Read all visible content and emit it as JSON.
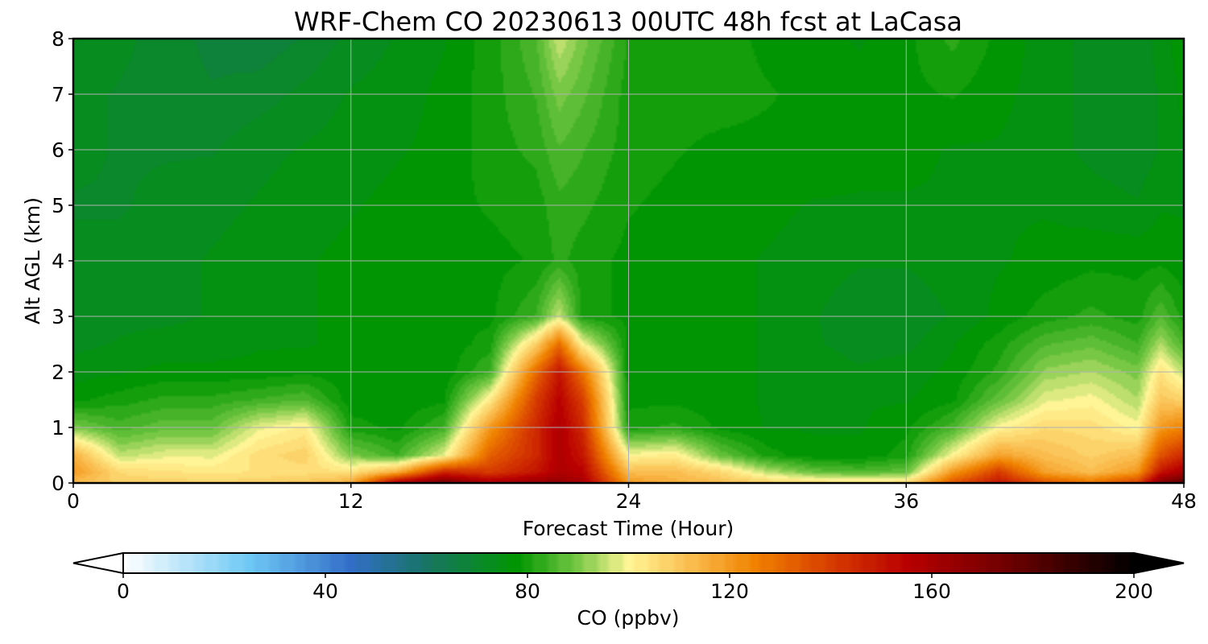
{
  "chart_data": {
    "type": "heatmap",
    "title": "WRF-Chem CO  20230613 00UTC 48h fcst at LaCasa",
    "xlabel": "Forecast Time (Hour)",
    "ylabel": "Alt AGL (km)",
    "xlim": [
      0,
      48
    ],
    "ylim": [
      0,
      8
    ],
    "xticks": [
      0,
      12,
      24,
      36,
      48
    ],
    "xtick_labels": [
      "0",
      "12",
      "24",
      "36",
      "48"
    ],
    "yticks": [
      0,
      1,
      2,
      3,
      4,
      5,
      6,
      7,
      8
    ],
    "ytick_labels": [
      "0",
      "1",
      "2",
      "3",
      "4",
      "5",
      "6",
      "7",
      "8"
    ],
    "grid": true,
    "colorbar": {
      "label": "CO  (ppbv)",
      "range": [
        0,
        200
      ],
      "ticks": [
        0,
        40,
        80,
        120,
        160,
        200
      ],
      "tick_labels": [
        "0",
        "40",
        "80",
        "120",
        "160",
        "200"
      ],
      "extend": "both"
    },
    "time_hours": [
      0,
      2,
      4,
      6,
      8,
      10,
      12,
      14,
      16,
      18,
      20,
      21,
      22,
      24,
      26,
      28,
      30,
      32,
      34,
      36,
      38,
      40,
      42,
      44,
      46,
      47,
      48
    ],
    "altitudes_km": [
      0,
      0.2,
      0.5,
      1,
      1.5,
      2,
      2.5,
      3,
      4,
      5,
      6,
      7,
      8
    ],
    "co_ppbv": [
      [
        112,
        108,
        108,
        107,
        108,
        110,
        116,
        160,
        175,
        160,
        165,
        165,
        160,
        120,
        115,
        112,
        108,
        106,
        105,
        106,
        135,
        150,
        135,
        128,
        140,
        170,
        180
      ],
      [
        120,
        106,
        104,
        103,
        104,
        105,
        104,
        115,
        145,
        140,
        150,
        158,
        155,
        112,
        112,
        106,
        95,
        88,
        86,
        88,
        120,
        140,
        118,
        112,
        120,
        150,
        160
      ],
      [
        115,
        95,
        98,
        98,
        105,
        108,
        90,
        84,
        98,
        132,
        145,
        158,
        150,
        100,
        102,
        88,
        80,
        77,
        77,
        80,
        100,
        118,
        112,
        108,
        112,
        135,
        145
      ],
      [
        90,
        85,
        88,
        88,
        98,
        102,
        80,
        78,
        84,
        120,
        145,
        158,
        145,
        80,
        82,
        78,
        76,
        76,
        76,
        78,
        85,
        100,
        106,
        105,
        100,
        120,
        125
      ],
      [
        78,
        80,
        82,
        82,
        84,
        86,
        77,
        77,
        78,
        102,
        140,
        155,
        140,
        78,
        78,
        77,
        76,
        76,
        76,
        76,
        78,
        88,
        98,
        100,
        94,
        110,
        108
      ],
      [
        75,
        76,
        77,
        77,
        77,
        78,
        77,
        77,
        77,
        84,
        130,
        150,
        128,
        77,
        77,
        77,
        76,
        75,
        74,
        75,
        77,
        82,
        92,
        94,
        90,
        104,
        95
      ],
      [
        73,
        74,
        75,
        75,
        76,
        76,
        77,
        77,
        77,
        80,
        108,
        130,
        100,
        78,
        77,
        77,
        76,
        74,
        73,
        73,
        76,
        80,
        86,
        88,
        84,
        94,
        85
      ],
      [
        72,
        73,
        73,
        74,
        75,
        76,
        77,
        77,
        78,
        78,
        84,
        96,
        80,
        78,
        77,
        77,
        76,
        74,
        72,
        72,
        74,
        77,
        80,
        82,
        80,
        86,
        80
      ],
      [
        72,
        72,
        73,
        74,
        75,
        76,
        77,
        78,
        78,
        78,
        79,
        82,
        80,
        78,
        77,
        77,
        76,
        75,
        74,
        74,
        75,
        76,
        77,
        78,
        78,
        78,
        77
      ],
      [
        71,
        71,
        72,
        73,
        74,
        75,
        76,
        77,
        78,
        79,
        80,
        83,
        82,
        79,
        78,
        77,
        77,
        76,
        76,
        76,
        76,
        76,
        76,
        75,
        74,
        76,
        76
      ],
      [
        72,
        71,
        71,
        71,
        73,
        74,
        75,
        76,
        77,
        80,
        82,
        86,
        84,
        80,
        79,
        78,
        78,
        78,
        77,
        77,
        76,
        76,
        75,
        73,
        72,
        74,
        76
      ],
      [
        72,
        71,
        70,
        69,
        70,
        72,
        74,
        75,
        77,
        80,
        84,
        90,
        87,
        80,
        80,
        80,
        79,
        78,
        77,
        78,
        79,
        77,
        75,
        73,
        72,
        74,
        77
      ],
      [
        74,
        72,
        70,
        68,
        67,
        69,
        72,
        74,
        76,
        80,
        86,
        96,
        90,
        81,
        80,
        80,
        78,
        77,
        76,
        78,
        82,
        78,
        75,
        73,
        72,
        75,
        78
      ]
    ]
  }
}
